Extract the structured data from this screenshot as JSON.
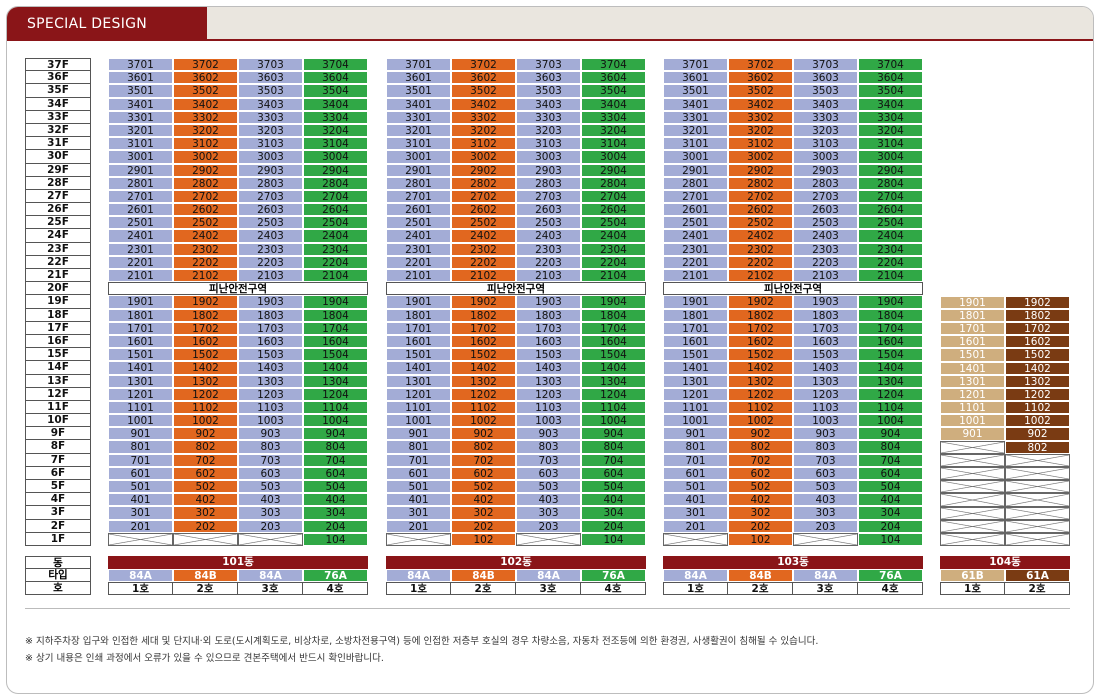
{
  "header": {
    "title": "SPECIAL DESIGN"
  },
  "floors_upper": [
    "37F",
    "36F",
    "35F",
    "34F",
    "33F",
    "32F",
    "31F",
    "30F",
    "29F",
    "28F",
    "27F",
    "26F",
    "25F",
    "24F",
    "23F",
    "22F",
    "21F"
  ],
  "floor_refuge": "20F",
  "floors_lower": [
    "19F",
    "18F",
    "17F",
    "16F",
    "15F",
    "14F",
    "13F",
    "12F",
    "11F",
    "10F",
    "9F",
    "8F",
    "7F",
    "6F",
    "5F",
    "4F",
    "3F",
    "2F",
    "1F"
  ],
  "refuge_label": "피난안전구역",
  "legend_labels": {
    "dong": "동",
    "type": "타입",
    "ho": "호"
  },
  "colors": {
    "84A": "#a3acd6",
    "84B": "#e1671f",
    "76A": "#30a846",
    "61B": "#cfae7e",
    "61A": "#7a3b13",
    "dong": "#8a1518"
  },
  "buildings": [
    {
      "name": "101동",
      "types": [
        "84A",
        "84B",
        "84A",
        "76A"
      ],
      "hos": [
        "1호",
        "2호",
        "3호",
        "4호"
      ],
      "first_floor": [
        "",
        "",
        "",
        "104"
      ],
      "first_floor_x": [
        true,
        true,
        true,
        false
      ]
    },
    {
      "name": "102동",
      "types": [
        "84A",
        "84B",
        "84A",
        "76A"
      ],
      "hos": [
        "1호",
        "2호",
        "3호",
        "4호"
      ],
      "first_floor": [
        "",
        "102",
        "",
        "104"
      ],
      "first_floor_x": [
        true,
        false,
        true,
        false
      ]
    },
    {
      "name": "103동",
      "types": [
        "84A",
        "84B",
        "84A",
        "76A"
      ],
      "hos": [
        "1호",
        "2호",
        "3호",
        "4호"
      ],
      "first_floor": [
        "",
        "102",
        "",
        "104"
      ],
      "first_floor_x": [
        true,
        false,
        true,
        false
      ]
    }
  ],
  "building104": {
    "name": "104동",
    "types": [
      "61B",
      "61A"
    ],
    "hos": [
      "1호",
      "2호"
    ],
    "top_floor": 19,
    "col1_lowest": 9,
    "col2_lowest": 8
  },
  "notes": [
    "※ 지하주차장 입구와 인접한 세대 및 단지내·외 도로(도시계획도로, 비상차로, 소방차전용구역) 등에 인접한 저층부 호실의 경우 차량소음, 자동차 전조등에 의한 환경권, 사생활권이 침해될 수 있습니다.",
    "※ 상기 내용은 인쇄 과정에서 오류가 있을 수 있으므로 견본주택에서 반드시 확인바랍니다."
  ]
}
